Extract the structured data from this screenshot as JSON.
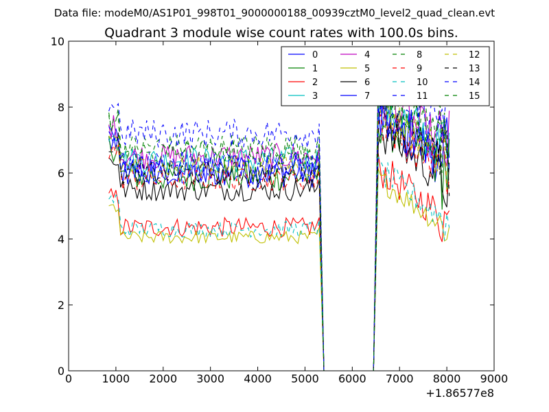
{
  "chart_data": {
    "type": "line",
    "suptitle": "Data file: modeM0/AS1P01_998T01_9000000188_00939cztM0_level2_quad_clean.evt",
    "title": "Quadrant 3 module wise count rates with 100.0s bins.",
    "xlabel": "",
    "ylabel": "",
    "x_offset_label": "+1.86577e8",
    "xlim": [
      0,
      9000
    ],
    "ylim": [
      0,
      10
    ],
    "x_ticks": [
      "0",
      "1000",
      "2000",
      "3000",
      "4000",
      "5000",
      "6000",
      "7000",
      "8000",
      "9000"
    ],
    "y_ticks": [
      "0",
      "2",
      "4",
      "6",
      "8",
      "10"
    ],
    "grid": false,
    "legend": {
      "placement": "top-right",
      "columns": 4
    },
    "series": [
      {
        "name": "0",
        "color": "#0000ff",
        "dashed": false,
        "base": 6.0,
        "noise": 0.45
      },
      {
        "name": "1",
        "color": "#008000",
        "dashed": false,
        "base": 5.9,
        "noise": 0.45
      },
      {
        "name": "2",
        "color": "#ff0000",
        "dashed": false,
        "base": 4.35,
        "noise": 0.3
      },
      {
        "name": "3",
        "color": "#00bfbf",
        "dashed": false,
        "base": 6.4,
        "noise": 0.4
      },
      {
        "name": "4",
        "color": "#bf00bf",
        "dashed": false,
        "base": 6.5,
        "noise": 0.4
      },
      {
        "name": "5",
        "color": "#bfbf00",
        "dashed": false,
        "base": 4.05,
        "noise": 0.2
      },
      {
        "name": "6",
        "color": "#000000",
        "dashed": false,
        "base": 5.5,
        "noise": 0.35
      },
      {
        "name": "7",
        "color": "#0000ff",
        "dashed": false,
        "base": 6.1,
        "noise": 0.45
      },
      {
        "name": "8",
        "color": "#008000",
        "dashed": true,
        "base": 6.8,
        "noise": 0.4
      },
      {
        "name": "9",
        "color": "#ff0000",
        "dashed": true,
        "base": 5.8,
        "noise": 0.35
      },
      {
        "name": "10",
        "color": "#00bfbf",
        "dashed": true,
        "base": 4.3,
        "noise": 0.25
      },
      {
        "name": "11",
        "color": "#0000ff",
        "dashed": true,
        "base": 6.3,
        "noise": 0.4
      },
      {
        "name": "12",
        "color": "#bfbf00",
        "dashed": true,
        "base": 6.2,
        "noise": 0.35
      },
      {
        "name": "13",
        "color": "#000000",
        "dashed": true,
        "base": 6.0,
        "noise": 0.35
      },
      {
        "name": "14",
        "color": "#0000ff",
        "dashed": true,
        "base": 7.2,
        "noise": 0.45
      },
      {
        "name": "15",
        "color": "#008000",
        "dashed": true,
        "base": 6.6,
        "noise": 0.4
      }
    ],
    "segments": [
      {
        "x_start": 850,
        "x_end": 5300,
        "step": 50,
        "level": "base"
      },
      {
        "x": 5400,
        "value": 0
      },
      {
        "x": 6450,
        "value": 0
      },
      {
        "x_start": 6550,
        "x_end": 8050,
        "step": 50,
        "level": "late"
      }
    ]
  }
}
